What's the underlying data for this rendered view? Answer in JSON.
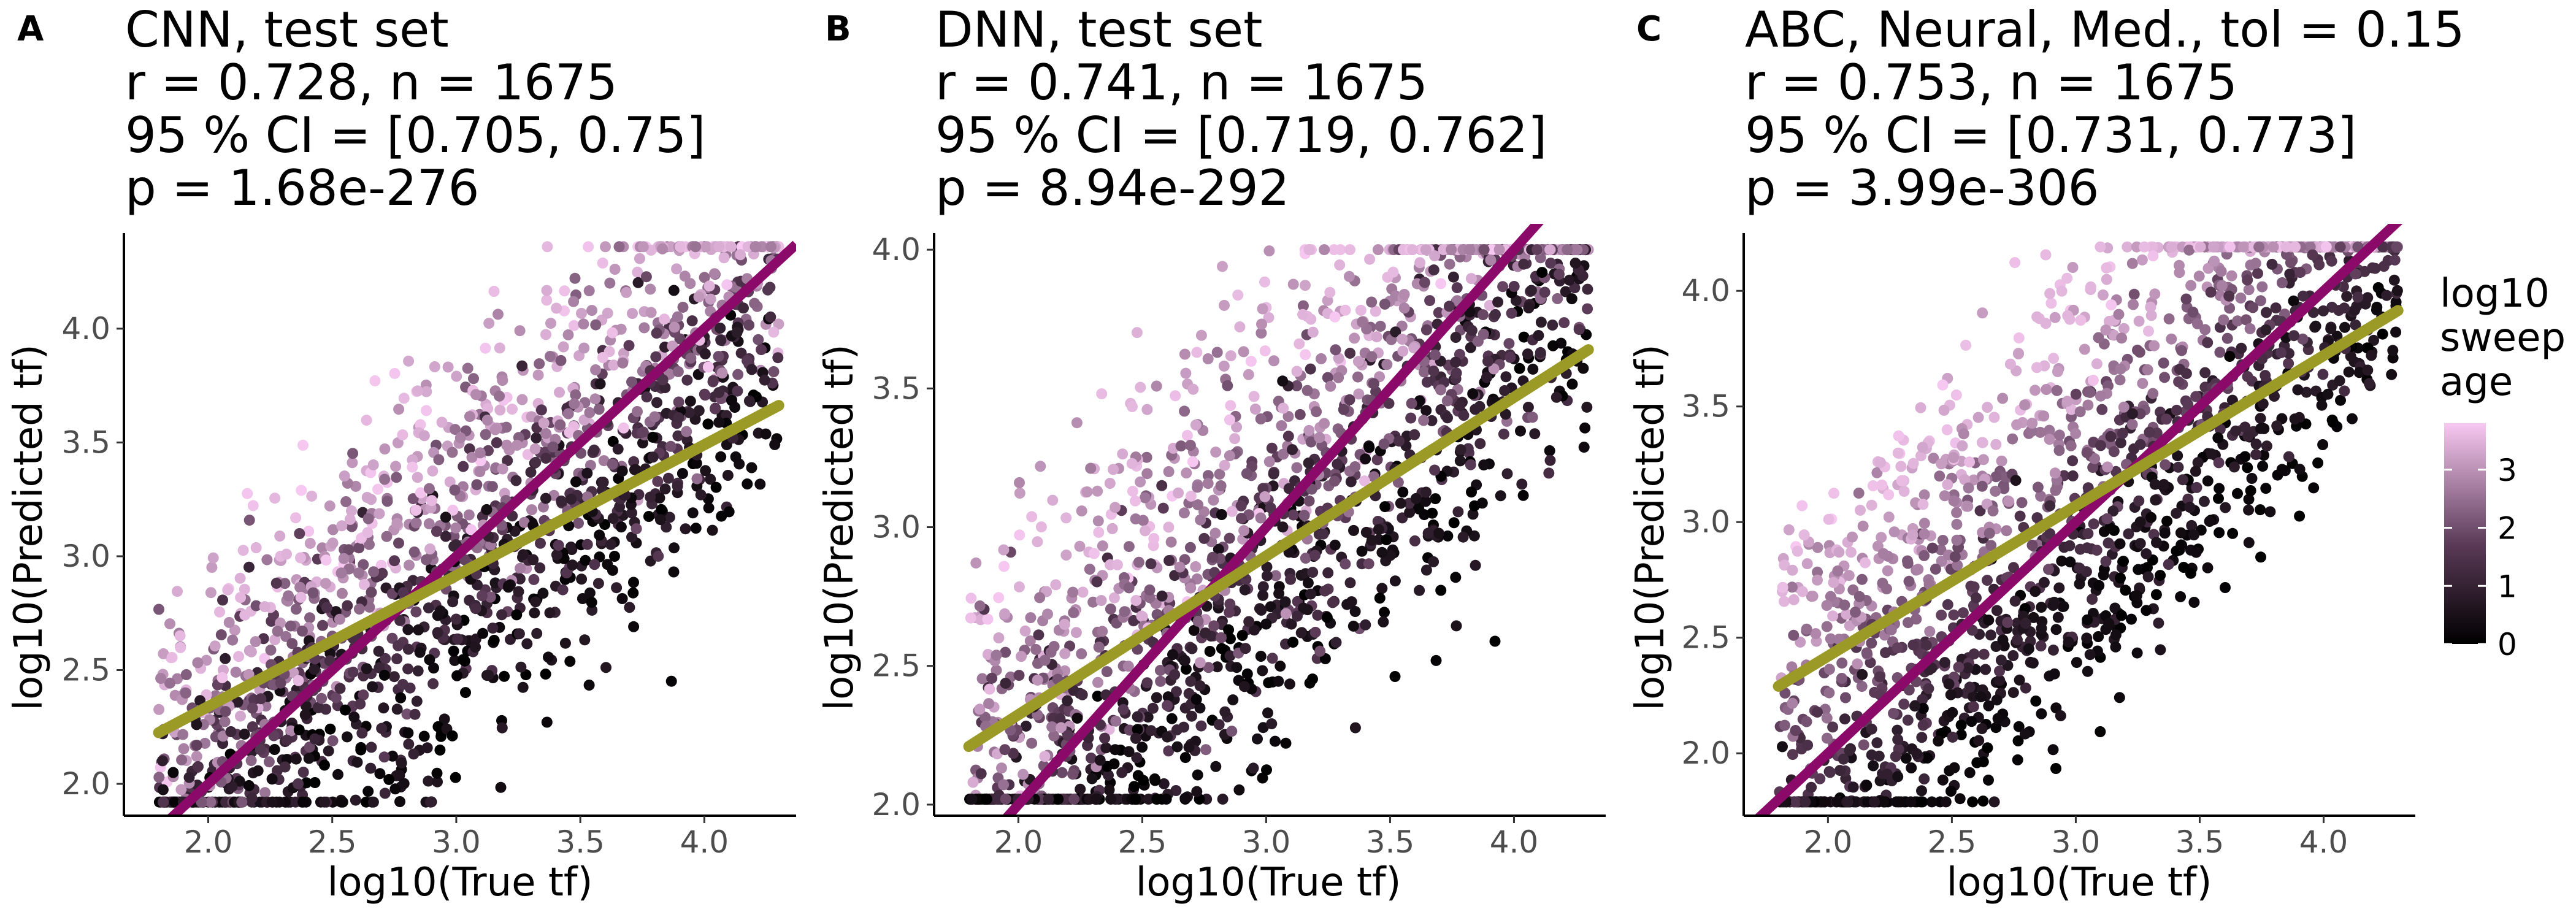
{
  "colors": {
    "identity_line": "#8B0A69",
    "regression_line": "#9B9A26",
    "gradient_low": "#000000",
    "gradient_mid": "#5A3A57",
    "gradient_high": "#F7C8F1"
  },
  "legend": {
    "title_lines": [
      "log10",
      "sweep",
      "age"
    ],
    "ticks": [
      "0",
      "1",
      "2",
      "3"
    ]
  },
  "chart_data": [
    {
      "type": "scatter",
      "panel_letter": "A",
      "title_lines": [
        "CNN, test set",
        "r = 0.728, n = 1675",
        "95 % CI = [0.705, 0.75]",
        "p = 1.68e-276"
      ],
      "xlabel": "log10(True tf)",
      "ylabel": "log10(Predicted tf)",
      "xlim": [
        1.66,
        4.37
      ],
      "ylim": [
        1.86,
        4.42
      ],
      "xticks": [
        "2.0",
        "2.5",
        "3.0",
        "3.5",
        "4.0"
      ],
      "yticks": [
        "2.0",
        "2.5",
        "3.0",
        "3.5",
        "4.0"
      ],
      "n": 1675,
      "regression": {
        "slope": 0.575,
        "intercept": 1.19
      },
      "identity": {
        "slope": 1,
        "intercept": 0
      },
      "color_variable": "log10 sweep age",
      "color_range": [
        0,
        3.8
      ]
    },
    {
      "type": "scatter",
      "panel_letter": "B",
      "title_lines": [
        "DNN, test set",
        "r = 0.741, n = 1675",
        "95 % CI = [0.719, 0.762]",
        "p = 8.94e-292"
      ],
      "xlabel": "log10(True tf)",
      "ylabel": "log10(Predicted tf)",
      "xlim": [
        1.66,
        4.37
      ],
      "ylim": [
        1.96,
        4.06
      ],
      "xticks": [
        "2.0",
        "2.5",
        "3.0",
        "3.5",
        "4.0"
      ],
      "yticks": [
        "2.0",
        "2.5",
        "3.0",
        "3.5",
        "4.0"
      ],
      "n": 1675,
      "regression": {
        "slope": 0.572,
        "intercept": 1.18
      },
      "identity": {
        "slope": 1,
        "intercept": 0
      },
      "color_variable": "log10 sweep age",
      "color_range": [
        0,
        3.8
      ]
    },
    {
      "type": "scatter",
      "panel_letter": "C",
      "title_lines": [
        "ABC, Neural, Med., tol = 0.15",
        "r = 0.753, n = 1675",
        "95 % CI = [0.731, 0.773]",
        "p = 3.99e-306"
      ],
      "xlabel": "log10(True tf)",
      "ylabel": "log10(Predicted tf)",
      "xlim": [
        1.66,
        4.37
      ],
      "ylim": [
        1.73,
        4.25
      ],
      "xticks": [
        "2.0",
        "2.5",
        "3.0",
        "3.5",
        "4.0"
      ],
      "yticks": [
        "2.0",
        "2.5",
        "3.0",
        "3.5",
        "4.0"
      ],
      "n": 1675,
      "regression": {
        "slope": 0.65,
        "intercept": 1.12
      },
      "identity": {
        "slope": 1,
        "intercept": 0
      },
      "color_variable": "log10 sweep age",
      "color_range": [
        0,
        3.8
      ]
    }
  ]
}
